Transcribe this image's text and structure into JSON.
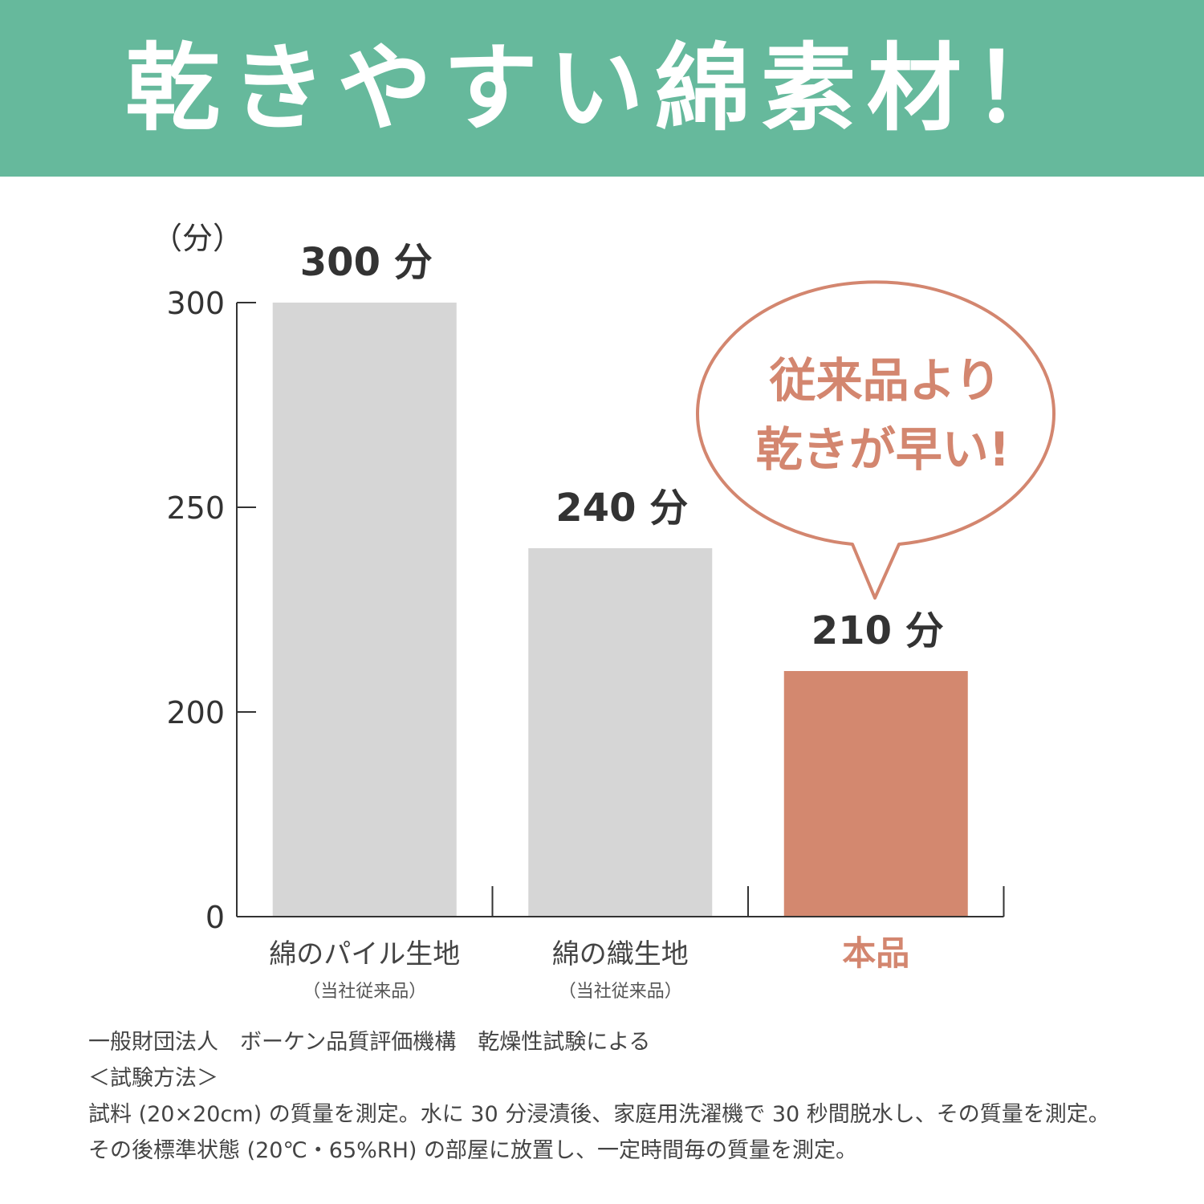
{
  "header": {
    "title": "乾きやすい綿素材！"
  },
  "colors": {
    "banner": "#66b99c",
    "bar_default": "#d6d6d6",
    "bar_highlight": "#d3886f",
    "axis": "#333333"
  },
  "chart_data": {
    "type": "bar",
    "unit_label": "（分）",
    "categories": [
      "綿のパイル生地",
      "綿の織生地",
      "本品"
    ],
    "category_notes": [
      "（当社従来品）",
      "（当社従来品）",
      ""
    ],
    "values": [
      300,
      240,
      210
    ],
    "value_labels": [
      "300 分",
      "240 分",
      "210 分"
    ],
    "highlight_index": 2,
    "y_ticks": [
      0,
      200,
      250,
      300
    ],
    "ylim": [
      0,
      300
    ],
    "axis_break": "0–200 (broken axis)",
    "grid": false,
    "callout": {
      "line1": "従来品より",
      "line2": "乾きが早い!"
    }
  },
  "notes": {
    "source": "一般財団法人　ボーケン品質評価機構　乾燥性試験による",
    "method_heading": "＜試験方法＞",
    "method_line1": "試料 (20×20cm) の質量を測定。水に 30 分浸漬後、家庭用洗濯機で 30 秒間脱水し、その質量を測定。",
    "method_line2": "その後標準状態 (20℃・65%RH) の部屋に放置し、一定時間毎の質量を測定。"
  }
}
